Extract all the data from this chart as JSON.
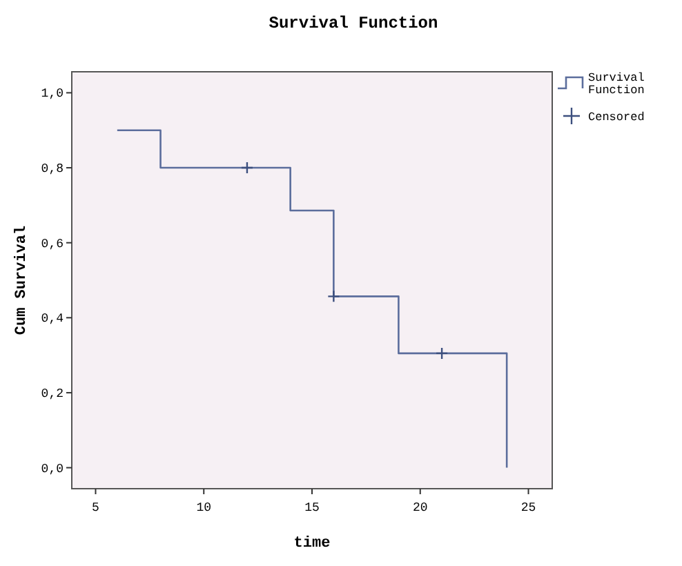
{
  "chart_data": {
    "type": "step",
    "title": "Survival Function",
    "xlabel": "time",
    "ylabel": "Cum Survival",
    "xlim": [
      3.9,
      26.1
    ],
    "xticks": [
      5,
      10,
      15,
      20,
      25
    ],
    "ylim": [
      -0.056,
      1.056
    ],
    "yticks": [
      {
        "value": 0,
        "label": "0,0"
      },
      {
        "value": 0.2,
        "label": "0,2"
      },
      {
        "value": 0.4,
        "label": "0,4"
      },
      {
        "value": 0.6,
        "label": "0,6"
      },
      {
        "value": 0.8,
        "label": "0,8"
      },
      {
        "value": 1,
        "label": "1,0"
      }
    ],
    "series": [
      {
        "name": "Survival Function",
        "color": "#5b6d9c",
        "x": [
          6,
          8,
          14,
          16,
          19,
          24
        ],
        "values": [
          0.9,
          0.8,
          0.686,
          0.457,
          0.305,
          0
        ]
      },
      {
        "name": "Censored",
        "type": "scatter",
        "marker": "cross",
        "color": "#3c4f7e",
        "x": [
          12,
          16,
          21
        ],
        "values": [
          0.8,
          0.457,
          0.305
        ]
      }
    ],
    "legend": "right",
    "grid": false
  }
}
